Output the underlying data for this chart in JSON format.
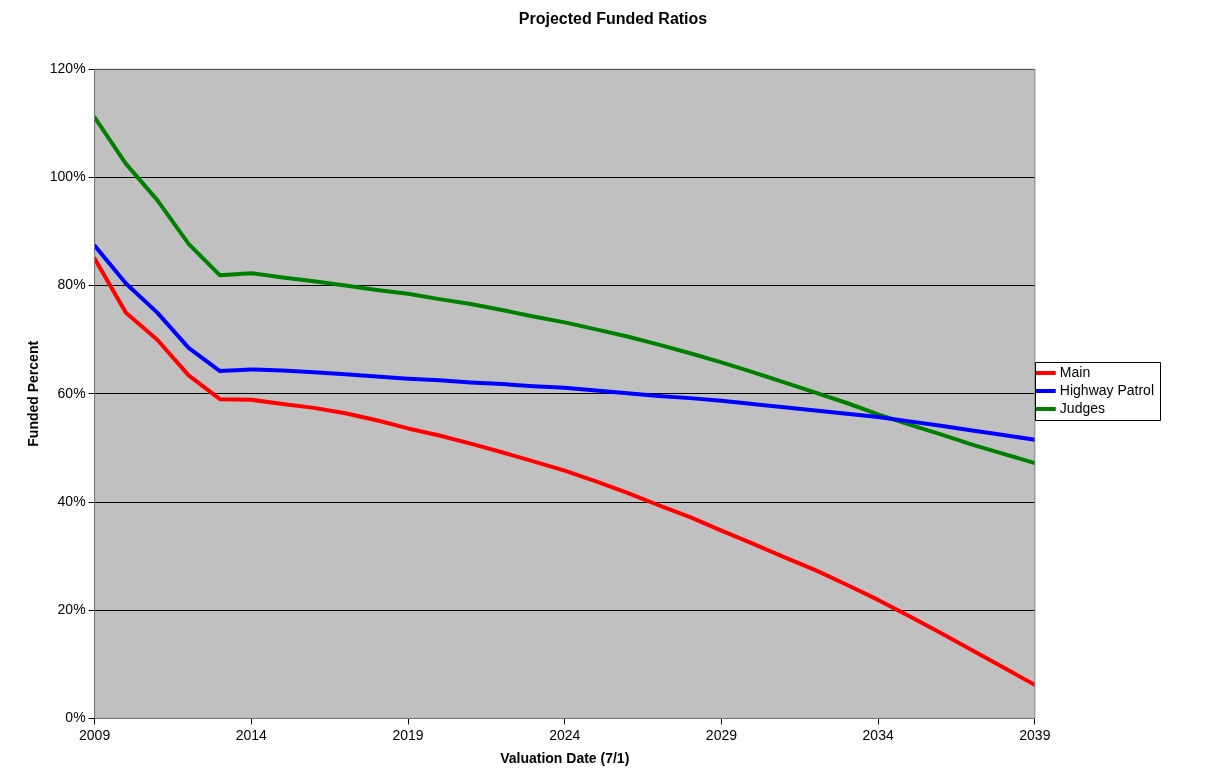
{
  "chart_data": {
    "type": "line",
    "title": "Projected Funded Ratios",
    "xlabel": "Valuation Date (7/1)",
    "ylabel": "Funded Percent",
    "x": [
      2009,
      2010,
      2011,
      2012,
      2013,
      2014,
      2015,
      2016,
      2017,
      2018,
      2019,
      2020,
      2021,
      2022,
      2023,
      2024,
      2025,
      2026,
      2027,
      2028,
      2029,
      2030,
      2031,
      2032,
      2033,
      2034,
      2035,
      2036,
      2037,
      2038,
      2039
    ],
    "series": [
      {
        "name": "Main",
        "color": "#ff0000",
        "values": [
          85,
          75,
          70,
          63.4,
          59,
          58.9,
          58.1,
          57.4,
          56.4,
          55.1,
          53.6,
          52.3,
          50.8,
          49.2,
          47.5,
          45.8,
          43.8,
          41.7,
          39.4,
          37.2,
          34.7,
          32.3,
          29.8,
          27.4,
          24.7,
          21.9,
          18.9,
          15.8,
          12.6,
          9.4,
          6.2
        ]
      },
      {
        "name": "Highway Patrol",
        "color": "#0000ff",
        "values": [
          87.4,
          80.4,
          75,
          68.5,
          64.2,
          64.5,
          64.3,
          64,
          63.6,
          63.2,
          62.8,
          62.5,
          62.1,
          61.8,
          61.4,
          61.1,
          60.6,
          60.1,
          59.6,
          59.2,
          58.7,
          58.1,
          57.5,
          56.9,
          56.3,
          55.7,
          54.9,
          54.1,
          53.2,
          52.4,
          51.5
        ]
      },
      {
        "name": "Judges",
        "color": "#008000",
        "values": [
          111.1,
          102.5,
          95.8,
          87.7,
          81.9,
          82.3,
          81.5,
          80.8,
          80,
          79.2,
          78.5,
          77.5,
          76.6,
          75.5,
          74.3,
          73.2,
          71.9,
          70.6,
          69.1,
          67.5,
          65.8,
          64,
          62.1,
          60.2,
          58.3,
          56.2,
          54.3,
          52.5,
          50.6,
          48.9,
          47.2
        ]
      }
    ],
    "xlim": [
      2009,
      2039
    ],
    "xticks": [
      2009,
      2014,
      2019,
      2024,
      2029,
      2034,
      2039
    ],
    "ylim": [
      0,
      120
    ],
    "yticks": [
      {
        "value": 0,
        "label": "0%"
      },
      {
        "value": 20,
        "label": "20%"
      },
      {
        "value": 40,
        "label": "40%"
      },
      {
        "value": 60,
        "label": "60%"
      },
      {
        "value": 80,
        "label": "80%"
      },
      {
        "value": 100,
        "label": "100%"
      },
      {
        "value": 120,
        "label": "120%"
      }
    ],
    "grid": "y",
    "legend": "right",
    "marker": "none",
    "line_style": "solid"
  }
}
